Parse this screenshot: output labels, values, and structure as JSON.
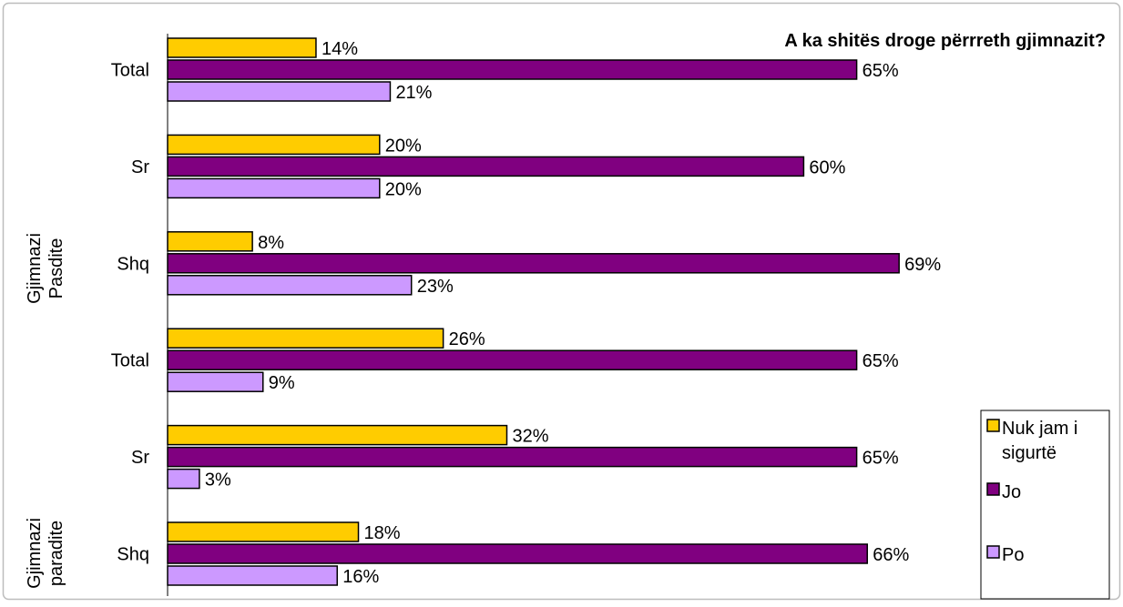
{
  "chart_data": {
    "type": "bar",
    "orientation": "horizontal",
    "title": "A ka shitës droge përrreth gjimnazit?",
    "groups": [
      {
        "name": "Gjimnazi Pasdite",
        "lines": [
          "Gjimnazi",
          "Pasdite"
        ]
      },
      {
        "name": "Gjimnazi paradite",
        "lines": [
          "Gjimnazi",
          "paradite"
        ]
      }
    ],
    "categories": [
      "Total",
      "Sr",
      "Shq",
      "Total",
      "Sr",
      "Shq"
    ],
    "category_group": [
      0,
      0,
      0,
      1,
      1,
      1
    ],
    "series": [
      {
        "name": "Nuk jam i sigurtë",
        "legend_lines": [
          "Nuk jam i",
          "sigurtë"
        ],
        "values": [
          14,
          20,
          8,
          26,
          32,
          18
        ],
        "color": "#FFCC00"
      },
      {
        "name": "Jo",
        "legend_lines": [
          "Jo"
        ],
        "values": [
          65,
          60,
          69,
          65,
          65,
          66
        ],
        "color": "#800080"
      },
      {
        "name": "Po",
        "legend_lines": [
          "Po"
        ],
        "values": [
          21,
          20,
          23,
          9,
          3,
          16
        ],
        "color": "#CC99FF"
      }
    ],
    "value_suffix": "%",
    "xlim": [
      0,
      100
    ],
    "grid": false,
    "legend_position": "right"
  }
}
